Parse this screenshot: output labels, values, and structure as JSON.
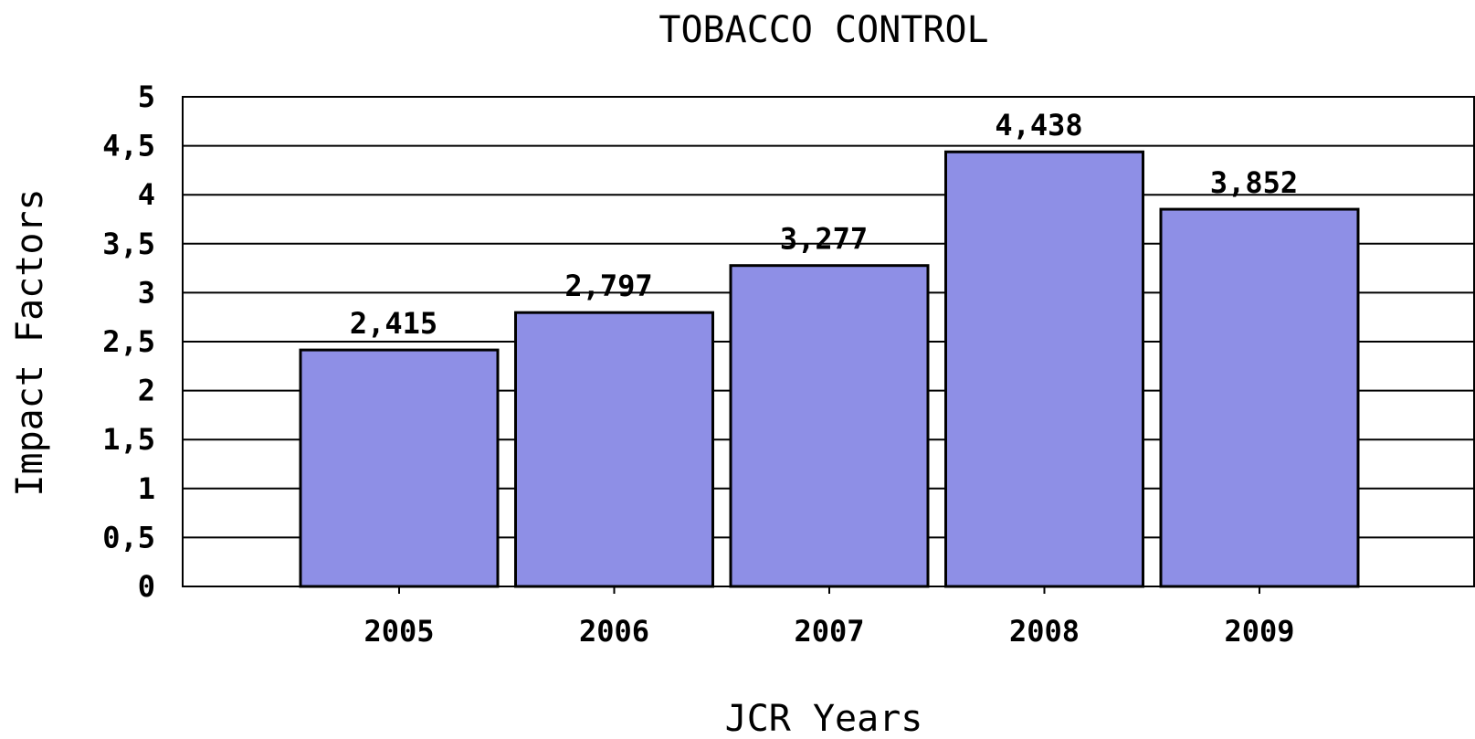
{
  "chart_data": {
    "type": "bar",
    "title": "TOBACCO CONTROL",
    "xlabel": "JCR Years",
    "ylabel": "Impact Factors",
    "categories": [
      "2005",
      "2006",
      "2007",
      "2008",
      "2009"
    ],
    "values": [
      2.415,
      2.797,
      3.277,
      4.438,
      3.852
    ],
    "value_labels": [
      "2,415",
      "2,797",
      "3,277",
      "4,438",
      "3,852"
    ],
    "ylim": [
      0,
      5
    ],
    "y_ticks": [
      0,
      0.5,
      1,
      1.5,
      2,
      2.5,
      3,
      3.5,
      4,
      4.5,
      5
    ],
    "y_tick_labels": [
      "0",
      "0,5",
      "1",
      "1,5",
      "2",
      "2,5",
      "3",
      "3,5",
      "4",
      "4,5",
      "5"
    ],
    "grid": true,
    "legend": "none",
    "colors": {
      "bar_fill": "#8e8fe6",
      "bar_stroke": "#000000",
      "grid": "#000000",
      "background": "#ffffff"
    }
  }
}
